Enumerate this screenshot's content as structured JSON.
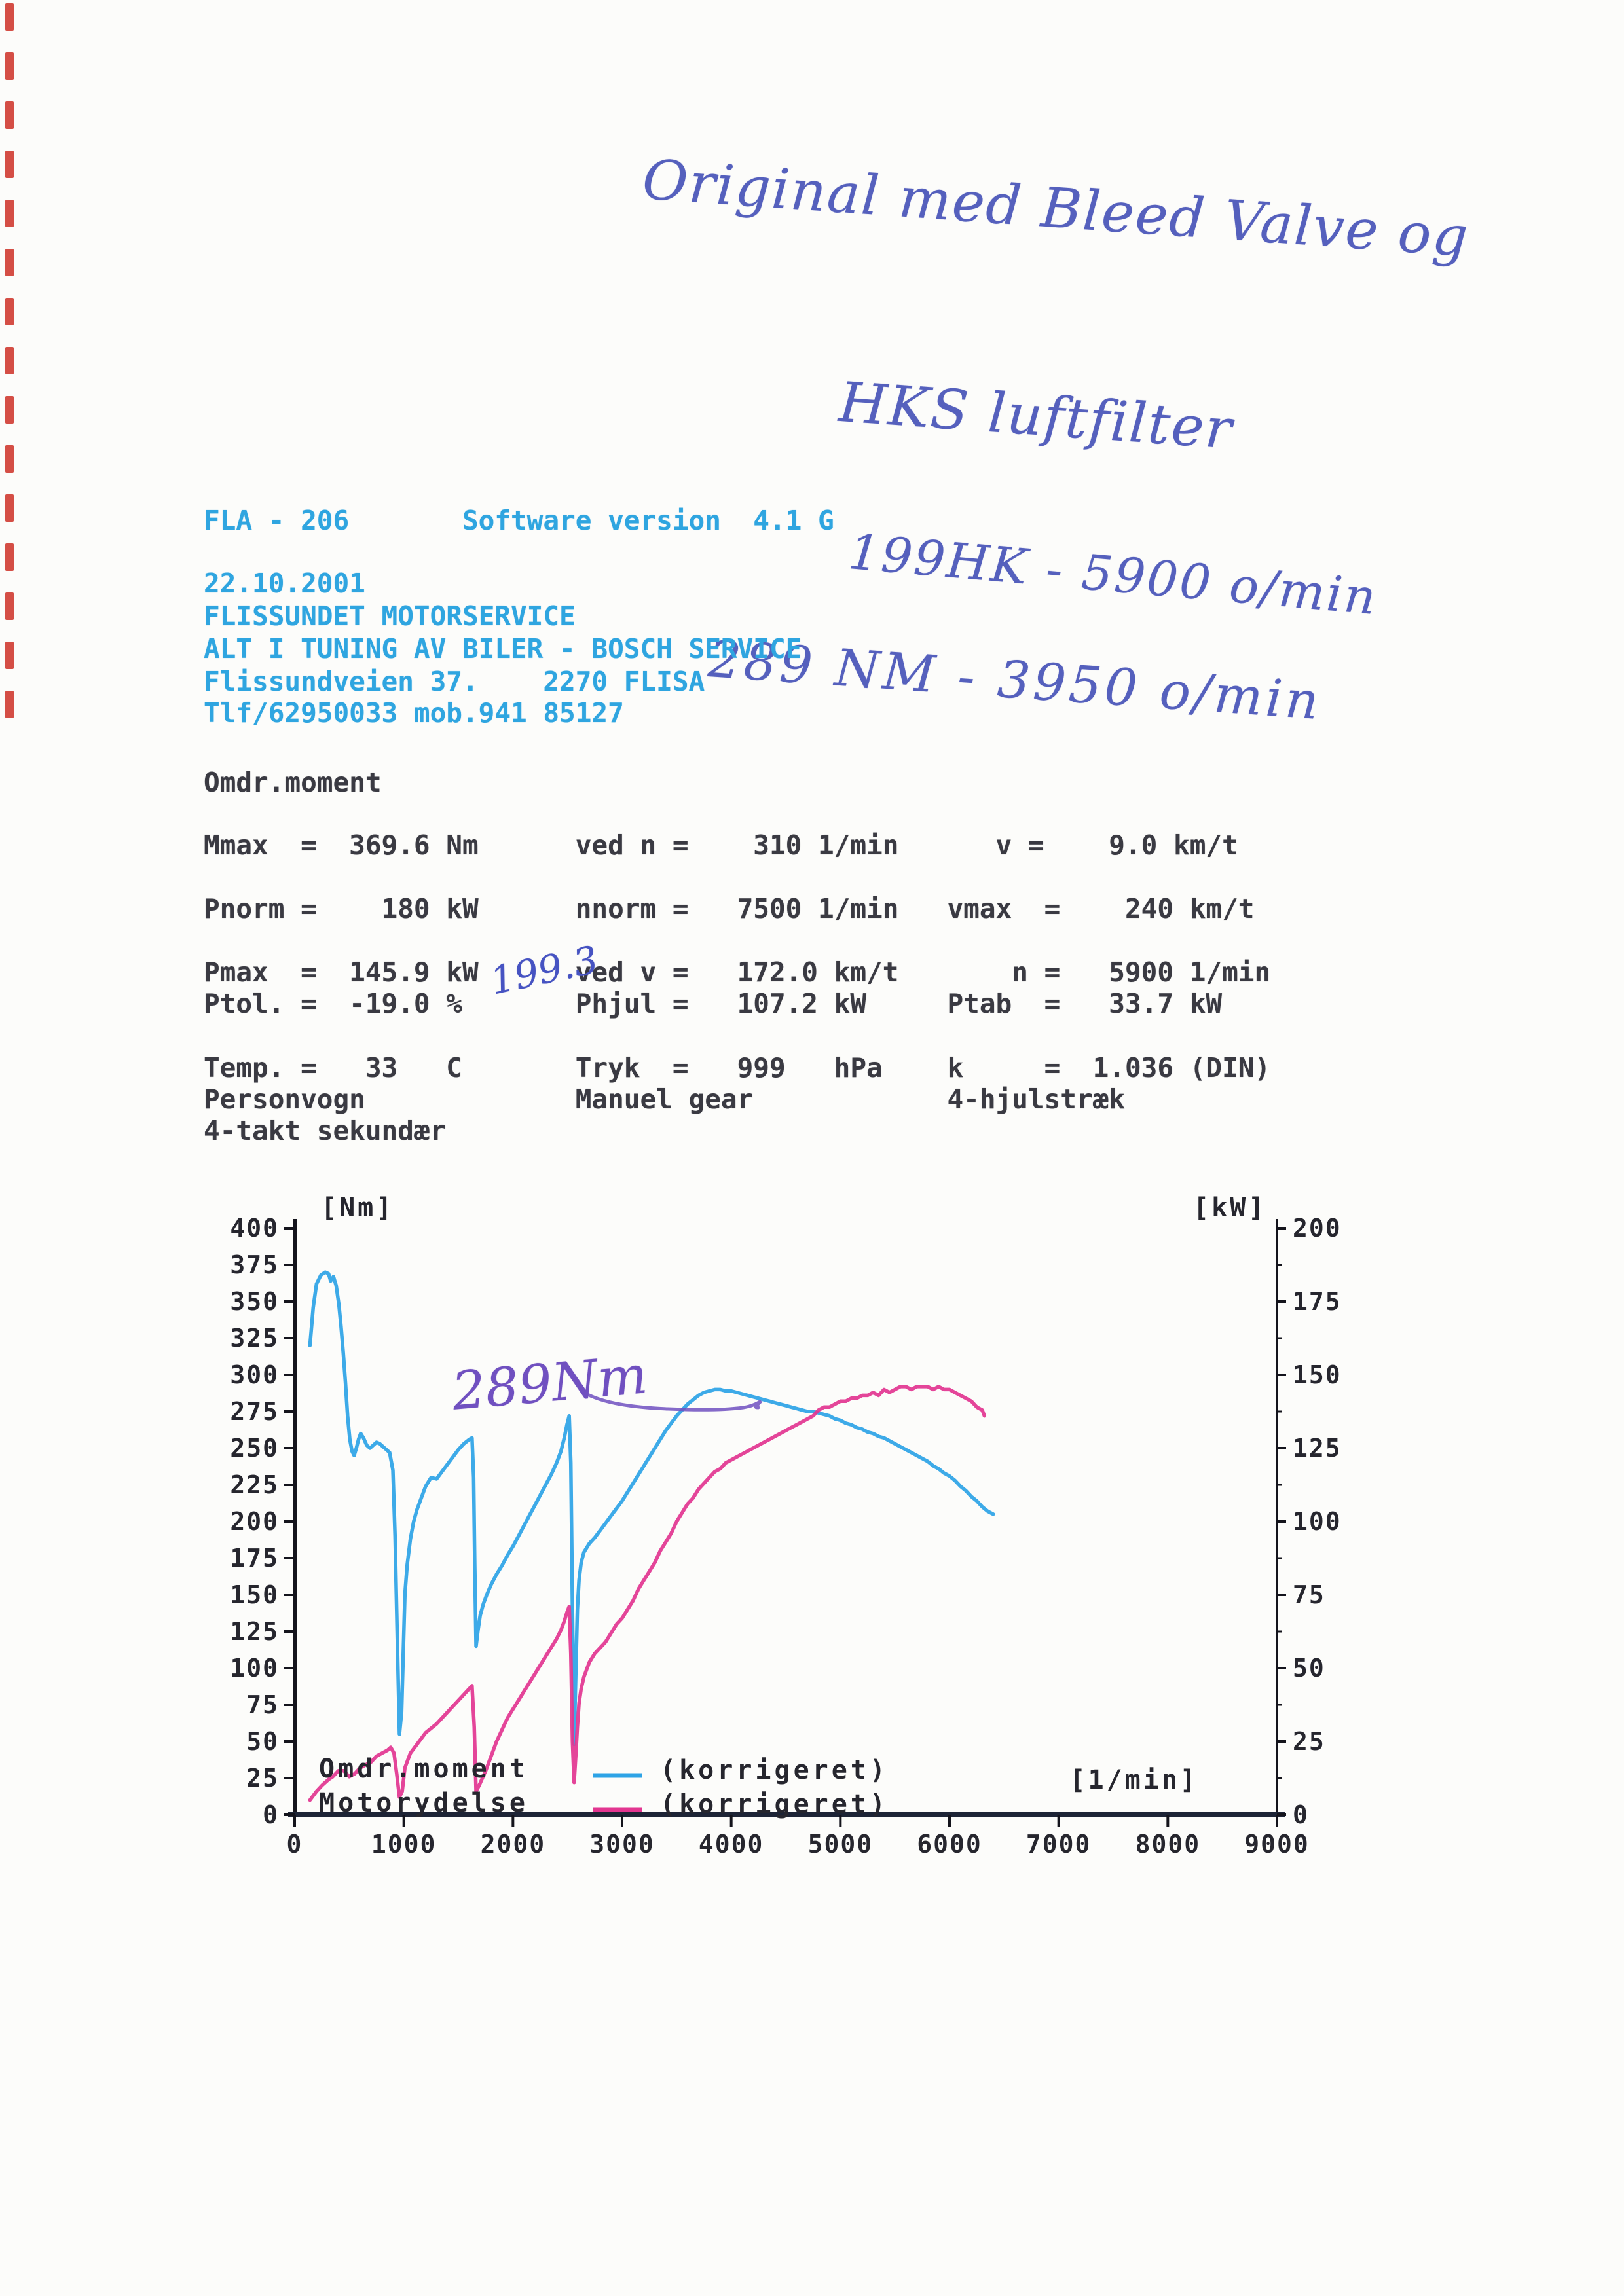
{
  "handwriting": {
    "ink_color": "#5560bd",
    "line1": "Original med Bleed Valve og",
    "line2": "HKS luftfilter",
    "line3": "199HK - 5900 o/min",
    "line4": "289 NM - 3950 o/min",
    "pmax_note": "199.3",
    "chart_note": "289Nm"
  },
  "header": {
    "text_color": "#2fa5e0",
    "line1": "FLA - 206       Software version  4.1 G",
    "address": [
      "22.10.2001",
      "FLISSUNDET MOTORSERVICE",
      "ALT I TUNING AV BILER - BOSCH SERVICE",
      "Flissundveien 37.    2270 FLISA",
      "Tlf/62950033 mob.941 85127"
    ]
  },
  "report": {
    "title": "Omdr.moment",
    "lines": [
      "Mmax  =  369.6 Nm      ved n =    310 1/min      v =    9.0 km/t",
      "Pnorm =    180 kW      nnorm =   7500 1/min   vmax  =    240 km/t",
      "Pmax  =  145.9 kW      ved v =   172.0 km/t       n =   5900 1/min",
      "Ptol. =  -19.0 %       Phjul =   107.2 kW     Ptab  =   33.7 kW",
      "Temp. =   33   C       Tryk  =   999   hPa    k     =  1.036 (DIN)",
      "Personvogn             Manuel gear            4-hjulstræk",
      "4-takt sekundær"
    ]
  },
  "chart_data": {
    "type": "line",
    "xlabel": "[1/min]",
    "ylabel_left": "[Nm]",
    "ylabel_right": "[kW]",
    "xlim": [
      0,
      9000
    ],
    "ylim_left": [
      0,
      400
    ],
    "ylim_right": [
      0,
      200
    ],
    "x_ticks": [
      0,
      1000,
      2000,
      3000,
      4000,
      5000,
      6000,
      7000,
      8000,
      9000
    ],
    "y_ticks_left": [
      0,
      25,
      50,
      75,
      100,
      125,
      150,
      175,
      200,
      225,
      250,
      275,
      300,
      325,
      350,
      375,
      400
    ],
    "y_ticks_right": [
      0,
      25,
      50,
      75,
      100,
      125,
      150,
      175,
      200
    ],
    "grid": false,
    "legend_position": "bottom-left-inside",
    "legend": [
      {
        "name": "Omdr.moment",
        "qualifier": "(korrigeret)",
        "color": "#2da3e6",
        "axis": "left"
      },
      {
        "name": "Motorydelse",
        "qualifier": "(korrigeret)",
        "color": "#e23590",
        "axis": "right"
      }
    ],
    "annotation": {
      "text": "289Nm",
      "color": "#7050c0",
      "at_rpm": 3950,
      "at_nm": 289
    },
    "series": [
      {
        "name": "Omdr.moment",
        "axis": "left",
        "unit": "Nm",
        "color": "#2da3e6",
        "points": [
          [
            140,
            320
          ],
          [
            170,
            346
          ],
          [
            200,
            362
          ],
          [
            240,
            368
          ],
          [
            280,
            370
          ],
          [
            310,
            369
          ],
          [
            330,
            364
          ],
          [
            355,
            367
          ],
          [
            380,
            361
          ],
          [
            405,
            348
          ],
          [
            425,
            333
          ],
          [
            445,
            315
          ],
          [
            465,
            295
          ],
          [
            485,
            272
          ],
          [
            505,
            256
          ],
          [
            525,
            248
          ],
          [
            545,
            245
          ],
          [
            565,
            250
          ],
          [
            585,
            256
          ],
          [
            605,
            260
          ],
          [
            630,
            257
          ],
          [
            660,
            252
          ],
          [
            690,
            250
          ],
          [
            720,
            252
          ],
          [
            750,
            254
          ],
          [
            780,
            253
          ],
          [
            810,
            251
          ],
          [
            840,
            249
          ],
          [
            870,
            247
          ],
          [
            900,
            235
          ],
          [
            920,
            190
          ],
          [
            940,
            120
          ],
          [
            960,
            55
          ],
          [
            980,
            70
          ],
          [
            995,
            110
          ],
          [
            1010,
            150
          ],
          [
            1030,
            170
          ],
          [
            1060,
            188
          ],
          [
            1090,
            200
          ],
          [
            1120,
            208
          ],
          [
            1160,
            216
          ],
          [
            1200,
            224
          ],
          [
            1250,
            230
          ],
          [
            1300,
            229
          ],
          [
            1350,
            234
          ],
          [
            1400,
            239
          ],
          [
            1450,
            244
          ],
          [
            1500,
            249
          ],
          [
            1550,
            253
          ],
          [
            1600,
            256
          ],
          [
            1625,
            257
          ],
          [
            1640,
            230
          ],
          [
            1650,
            170
          ],
          [
            1662,
            115
          ],
          [
            1680,
            126
          ],
          [
            1700,
            136
          ],
          [
            1730,
            144
          ],
          [
            1760,
            150
          ],
          [
            1800,
            157
          ],
          [
            1850,
            164
          ],
          [
            1900,
            170
          ],
          [
            1950,
            177
          ],
          [
            2000,
            183
          ],
          [
            2050,
            190
          ],
          [
            2100,
            197
          ],
          [
            2150,
            204
          ],
          [
            2200,
            211
          ],
          [
            2250,
            218
          ],
          [
            2300,
            225
          ],
          [
            2350,
            232
          ],
          [
            2400,
            240
          ],
          [
            2440,
            248
          ],
          [
            2470,
            257
          ],
          [
            2495,
            266
          ],
          [
            2515,
            272
          ],
          [
            2530,
            240
          ],
          [
            2545,
            140
          ],
          [
            2560,
            48
          ],
          [
            2575,
            95
          ],
          [
            2590,
            140
          ],
          [
            2605,
            160
          ],
          [
            2625,
            172
          ],
          [
            2650,
            179
          ],
          [
            2700,
            185
          ],
          [
            2750,
            189
          ],
          [
            2800,
            194
          ],
          [
            2850,
            199
          ],
          [
            2900,
            204
          ],
          [
            2950,
            209
          ],
          [
            3000,
            214
          ],
          [
            3050,
            220
          ],
          [
            3100,
            226
          ],
          [
            3150,
            232
          ],
          [
            3200,
            238
          ],
          [
            3250,
            244
          ],
          [
            3300,
            250
          ],
          [
            3350,
            256
          ],
          [
            3400,
            262
          ],
          [
            3450,
            267
          ],
          [
            3500,
            272
          ],
          [
            3550,
            276
          ],
          [
            3600,
            280
          ],
          [
            3650,
            283
          ],
          [
            3700,
            286
          ],
          [
            3750,
            288
          ],
          [
            3800,
            289
          ],
          [
            3850,
            290
          ],
          [
            3900,
            290
          ],
          [
            3950,
            289
          ],
          [
            4000,
            289
          ],
          [
            4050,
            288
          ],
          [
            4100,
            287
          ],
          [
            4150,
            286
          ],
          [
            4200,
            285
          ],
          [
            4250,
            284
          ],
          [
            4300,
            283
          ],
          [
            4350,
            282
          ],
          [
            4400,
            281
          ],
          [
            4450,
            280
          ],
          [
            4500,
            279
          ],
          [
            4550,
            278
          ],
          [
            4600,
            277
          ],
          [
            4650,
            276
          ],
          [
            4700,
            275
          ],
          [
            4750,
            275
          ],
          [
            4800,
            274
          ],
          [
            4850,
            273
          ],
          [
            4900,
            272
          ],
          [
            4950,
            270
          ],
          [
            5000,
            269
          ],
          [
            5050,
            267
          ],
          [
            5100,
            266
          ],
          [
            5150,
            264
          ],
          [
            5200,
            263
          ],
          [
            5250,
            261
          ],
          [
            5300,
            260
          ],
          [
            5350,
            258
          ],
          [
            5400,
            257
          ],
          [
            5450,
            255
          ],
          [
            5500,
            253
          ],
          [
            5550,
            251
          ],
          [
            5600,
            249
          ],
          [
            5650,
            247
          ],
          [
            5700,
            245
          ],
          [
            5750,
            243
          ],
          [
            5800,
            241
          ],
          [
            5850,
            238
          ],
          [
            5900,
            236
          ],
          [
            5950,
            233
          ],
          [
            6000,
            231
          ],
          [
            6050,
            228
          ],
          [
            6100,
            224
          ],
          [
            6150,
            221
          ],
          [
            6200,
            217
          ],
          [
            6250,
            214
          ],
          [
            6300,
            210
          ],
          [
            6350,
            207
          ],
          [
            6400,
            205
          ]
        ]
      },
      {
        "name": "Motorydelse",
        "axis": "right",
        "unit": "kW",
        "color": "#e23590",
        "points": [
          [
            140,
            5
          ],
          [
            200,
            8
          ],
          [
            250,
            10
          ],
          [
            310,
            12
          ],
          [
            350,
            13
          ],
          [
            400,
            15
          ],
          [
            450,
            15
          ],
          [
            500,
            13
          ],
          [
            550,
            14
          ],
          [
            600,
            16
          ],
          [
            650,
            17
          ],
          [
            700,
            18
          ],
          [
            750,
            20
          ],
          [
            800,
            21
          ],
          [
            850,
            22
          ],
          [
            880,
            23
          ],
          [
            910,
            21
          ],
          [
            935,
            14
          ],
          [
            960,
            6
          ],
          [
            985,
            8
          ],
          [
            1010,
            16
          ],
          [
            1060,
            21
          ],
          [
            1120,
            24
          ],
          [
            1200,
            28
          ],
          [
            1300,
            31
          ],
          [
            1400,
            35
          ],
          [
            1500,
            39
          ],
          [
            1600,
            43
          ],
          [
            1625,
            44
          ],
          [
            1645,
            30
          ],
          [
            1662,
            8
          ],
          [
            1690,
            10
          ],
          [
            1750,
            15
          ],
          [
            1800,
            20
          ],
          [
            1850,
            25
          ],
          [
            1900,
            29
          ],
          [
            1950,
            33
          ],
          [
            2000,
            36
          ],
          [
            2050,
            39
          ],
          [
            2100,
            42
          ],
          [
            2150,
            45
          ],
          [
            2200,
            48
          ],
          [
            2250,
            51
          ],
          [
            2300,
            54
          ],
          [
            2350,
            57
          ],
          [
            2400,
            60
          ],
          [
            2440,
            63
          ],
          [
            2470,
            66
          ],
          [
            2495,
            69
          ],
          [
            2515,
            71
          ],
          [
            2530,
            55
          ],
          [
            2545,
            25
          ],
          [
            2560,
            11
          ],
          [
            2575,
            20
          ],
          [
            2590,
            30
          ],
          [
            2605,
            38
          ],
          [
            2625,
            43
          ],
          [
            2650,
            47
          ],
          [
            2700,
            52
          ],
          [
            2750,
            55
          ],
          [
            2800,
            57
          ],
          [
            2850,
            59
          ],
          [
            2900,
            62
          ],
          [
            2950,
            65
          ],
          [
            3000,
            67
          ],
          [
            3050,
            70
          ],
          [
            3100,
            73
          ],
          [
            3150,
            77
          ],
          [
            3200,
            80
          ],
          [
            3250,
            83
          ],
          [
            3300,
            86
          ],
          [
            3350,
            90
          ],
          [
            3400,
            93
          ],
          [
            3450,
            96
          ],
          [
            3500,
            100
          ],
          [
            3550,
            103
          ],
          [
            3600,
            106
          ],
          [
            3650,
            108
          ],
          [
            3700,
            111
          ],
          [
            3750,
            113
          ],
          [
            3800,
            115
          ],
          [
            3850,
            117
          ],
          [
            3900,
            118
          ],
          [
            3950,
            120
          ],
          [
            4000,
            121
          ],
          [
            4050,
            122
          ],
          [
            4100,
            123
          ],
          [
            4150,
            124
          ],
          [
            4200,
            125
          ],
          [
            4250,
            126
          ],
          [
            4300,
            127
          ],
          [
            4350,
            128
          ],
          [
            4400,
            129
          ],
          [
            4450,
            130
          ],
          [
            4500,
            131
          ],
          [
            4550,
            132
          ],
          [
            4600,
            133
          ],
          [
            4650,
            134
          ],
          [
            4700,
            135
          ],
          [
            4750,
            136
          ],
          [
            4800,
            138
          ],
          [
            4850,
            139
          ],
          [
            4900,
            139
          ],
          [
            4950,
            140
          ],
          [
            5000,
            141
          ],
          [
            5050,
            141
          ],
          [
            5100,
            142
          ],
          [
            5150,
            142
          ],
          [
            5200,
            143
          ],
          [
            5250,
            143
          ],
          [
            5300,
            144
          ],
          [
            5350,
            143
          ],
          [
            5400,
            145
          ],
          [
            5450,
            144
          ],
          [
            5500,
            145
          ],
          [
            5550,
            146
          ],
          [
            5600,
            146
          ],
          [
            5650,
            145
          ],
          [
            5700,
            146
          ],
          [
            5750,
            146
          ],
          [
            5800,
            146
          ],
          [
            5850,
            145
          ],
          [
            5900,
            146
          ],
          [
            5950,
            145
          ],
          [
            6000,
            145
          ],
          [
            6050,
            144
          ],
          [
            6100,
            143
          ],
          [
            6150,
            142
          ],
          [
            6200,
            141
          ],
          [
            6250,
            139
          ],
          [
            6300,
            138
          ],
          [
            6320,
            136
          ]
        ]
      }
    ]
  }
}
